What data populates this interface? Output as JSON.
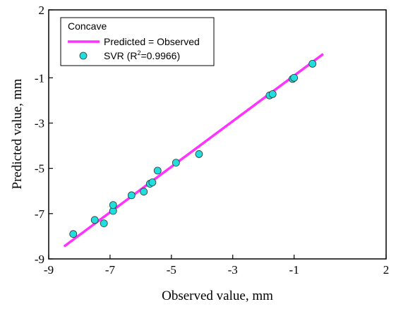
{
  "chart_data": {
    "type": "scatter",
    "xlabel": "Observed value, mm",
    "ylabel": "Predicted value, mm",
    "xlim": [
      -9,
      2
    ],
    "ylim": [
      -9,
      2
    ],
    "xticks": [
      -9,
      -7,
      -5,
      -3,
      -1,
      2
    ],
    "yticks": [
      -9,
      -7,
      -5,
      -3,
      -1,
      2
    ],
    "xtick_labels": [
      "-9",
      "-7",
      "-5",
      "-3",
      "-1",
      "2"
    ],
    "ytick_labels": [
      "-9",
      "-7",
      "-5",
      "-3",
      "-1",
      "2"
    ],
    "grid": false,
    "legend": {
      "position": "top-left",
      "title": "Concave",
      "line_label": "Predicted = Observed",
      "points_label_prefix": "SVR (R",
      "points_label_sup": "2",
      "points_label_suffix": "=0.9966)"
    },
    "series": [
      {
        "name": "Predicted = Observed",
        "kind": "line",
        "color": "#ff33ff",
        "x": [
          -8.5,
          -0.05
        ],
        "y": [
          -8.45,
          0.05
        ]
      },
      {
        "name": "SVR (R2=0.9966)",
        "kind": "scatter",
        "color": "#22dddd",
        "x": [
          -8.2,
          -7.5,
          -7.2,
          -6.9,
          -6.9,
          -6.3,
          -5.9,
          -5.7,
          -5.62,
          -5.45,
          -4.85,
          -4.1,
          -1.8,
          -1.7,
          -1.05,
          -1.0,
          -0.4
        ],
        "y": [
          -7.9,
          -7.28,
          -7.43,
          -6.88,
          -6.62,
          -6.19,
          -6.03,
          -5.68,
          -5.62,
          -5.1,
          -4.75,
          -4.37,
          -1.78,
          -1.72,
          -1.05,
          -1.0,
          -0.38
        ]
      }
    ]
  }
}
